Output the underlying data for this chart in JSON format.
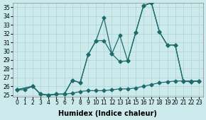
{
  "xlabel": "Humidex (Indice chaleur)",
  "bg_color": "#cceaec",
  "grid_color": "#aad4d6",
  "line_color": "#1e6b6b",
  "xlim": [
    -0.5,
    23.5
  ],
  "ylim": [
    24.8,
    35.5
  ],
  "xticks": [
    0,
    1,
    2,
    3,
    4,
    5,
    6,
    7,
    8,
    9,
    10,
    11,
    12,
    13,
    14,
    15,
    16,
    17,
    18,
    19,
    20,
    21,
    22,
    23
  ],
  "yticks": [
    25,
    26,
    27,
    28,
    29,
    30,
    31,
    32,
    33,
    34,
    35
  ],
  "series1_x": [
    0,
    1,
    2,
    3,
    4,
    5,
    6,
    7,
    8,
    9,
    10,
    11,
    12,
    13,
    14,
    15,
    16,
    17,
    18,
    19,
    20,
    21,
    22,
    23
  ],
  "series1_y": [
    25.6,
    25.6,
    26.0,
    25.1,
    25.0,
    25.1,
    25.1,
    25.2,
    25.4,
    25.5,
    25.5,
    25.5,
    25.6,
    25.7,
    25.7,
    25.8,
    26.0,
    26.2,
    26.4,
    26.5,
    26.6,
    26.6,
    26.6,
    26.6
  ],
  "series2_x": [
    0,
    2,
    3,
    4,
    5,
    6,
    7,
    8,
    9,
    10,
    11,
    12,
    13,
    14,
    15,
    16,
    17,
    18,
    19,
    20,
    21,
    22,
    23
  ],
  "series2_y": [
    25.6,
    26.0,
    25.1,
    25.0,
    25.1,
    25.1,
    26.7,
    26.4,
    29.6,
    31.2,
    33.8,
    29.7,
    31.8,
    28.9,
    32.1,
    35.2,
    35.5,
    32.2,
    30.7,
    30.7,
    26.6,
    26.5,
    26.6
  ],
  "series3_x": [
    0,
    2,
    3,
    4,
    5,
    6,
    7,
    8,
    9,
    10,
    11,
    12,
    13,
    14,
    15,
    16,
    17,
    18,
    19,
    20,
    21,
    22,
    23
  ],
  "series3_y": [
    25.6,
    26.0,
    25.1,
    25.0,
    25.1,
    25.1,
    26.7,
    26.4,
    29.6,
    31.2,
    31.2,
    29.7,
    28.8,
    28.9,
    32.1,
    35.2,
    35.5,
    32.2,
    30.7,
    30.7,
    26.6,
    26.5,
    26.6
  ],
  "marker": "D",
  "marker_size": 2.5,
  "line_width": 0.9,
  "tick_fontsize": 5.5,
  "xlabel_fontsize": 7
}
